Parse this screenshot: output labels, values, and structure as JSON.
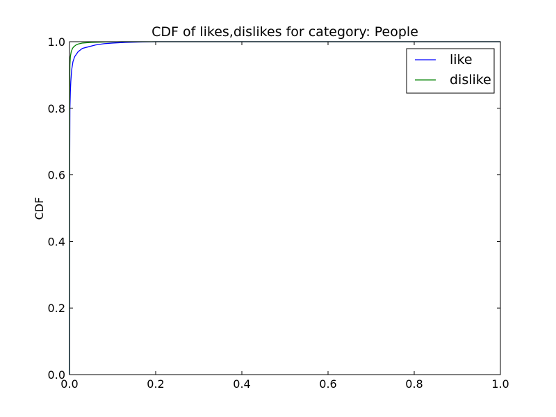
{
  "chart_data": {
    "type": "line",
    "title": "CDF of likes,dislikes for category: People",
    "xlabel": "",
    "ylabel": "CDF",
    "xlim": [
      0.0,
      1.0
    ],
    "ylim": [
      0.0,
      1.0
    ],
    "x_ticks": [
      "0.0",
      "0.2",
      "0.4",
      "0.6",
      "0.8",
      "1.0"
    ],
    "y_ticks": [
      "0.0",
      "0.2",
      "0.4",
      "0.6",
      "0.8",
      "1.0"
    ],
    "grid": false,
    "legend_position": "top-right",
    "series": [
      {
        "name": "like",
        "color": "#0000ff",
        "x": [
          0.0,
          0.0005,
          0.001,
          0.002,
          0.003,
          0.005,
          0.008,
          0.012,
          0.02,
          0.03,
          0.045,
          0.06,
          0.08,
          0.1,
          0.13,
          0.16,
          0.2,
          1.0
        ],
        "y": [
          0.0,
          0.64,
          0.8,
          0.85,
          0.88,
          0.915,
          0.94,
          0.955,
          0.97,
          0.98,
          0.985,
          0.99,
          0.994,
          0.996,
          0.998,
          0.999,
          1.0,
          1.0
        ]
      },
      {
        "name": "dislike",
        "color": "#008000",
        "x": [
          0.0,
          0.0005,
          0.001,
          0.002,
          0.004,
          0.007,
          0.01,
          0.015,
          0.02,
          0.03,
          0.05,
          0.08,
          0.12,
          1.0
        ],
        "y": [
          0.0,
          0.86,
          0.93,
          0.955,
          0.97,
          0.98,
          0.985,
          0.99,
          0.993,
          0.996,
          0.998,
          0.999,
          1.0,
          1.0
        ]
      }
    ]
  }
}
